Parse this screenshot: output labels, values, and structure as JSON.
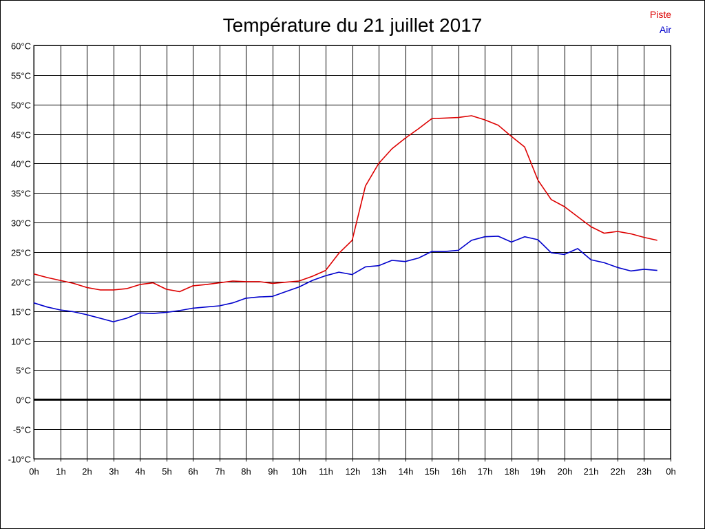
{
  "chart_data": {
    "type": "line",
    "title": "Température du 21 juillet 2017",
    "x_tick_labels": [
      "0h",
      "1h",
      "2h",
      "3h",
      "4h",
      "5h",
      "6h",
      "7h",
      "8h",
      "9h",
      "10h",
      "11h",
      "12h",
      "13h",
      "14h",
      "15h",
      "16h",
      "17h",
      "18h",
      "19h",
      "20h",
      "21h",
      "22h",
      "23h",
      "0h"
    ],
    "y_tick_labels": [
      "60°C",
      "55°C",
      "50°C",
      "45°C",
      "40°C",
      "35°C",
      "30°C",
      "25°C",
      "20°C",
      "15°C",
      "10°C",
      "5°C",
      "0°C",
      "-5°C",
      "-10°C"
    ],
    "xlim": [
      0,
      24
    ],
    "ylim": [
      -10,
      60
    ],
    "grid": true,
    "legend_position": "top-right",
    "reference_line": {
      "y": 0,
      "color": "#000000"
    },
    "x": [
      0,
      0.5,
      1,
      1.5,
      2,
      2.5,
      3,
      3.5,
      4,
      4.5,
      5,
      5.5,
      6,
      6.5,
      7,
      7.5,
      8,
      8.5,
      9,
      9.5,
      10,
      10.5,
      11,
      11.5,
      12,
      12.5,
      13,
      13.5,
      14,
      14.5,
      15,
      15.5,
      16,
      16.5,
      17,
      17.5,
      18,
      18.5,
      19,
      19.5,
      20,
      20.5,
      21,
      21.5,
      22,
      22.5,
      23,
      23.5
    ],
    "series": [
      {
        "name": "Piste",
        "color": "#dd0000",
        "values": [
          21.3,
          20.7,
          20.2,
          19.7,
          19.0,
          18.6,
          18.6,
          18.8,
          19.5,
          19.8,
          18.7,
          18.3,
          19.3,
          19.5,
          19.8,
          20.1,
          20.0,
          20.0,
          19.7,
          19.9,
          20.1,
          20.9,
          21.9,
          24.8,
          27.0,
          36.2,
          40.0,
          42.5,
          44.3,
          45.9,
          47.6,
          47.7,
          47.8,
          48.1,
          47.4,
          46.5,
          44.6,
          42.8,
          37.2,
          33.9,
          32.7,
          31.0,
          29.3,
          28.2,
          28.5,
          28.1,
          27.5,
          27.0
        ]
      },
      {
        "name": "Air",
        "color": "#0000cc",
        "values": [
          16.4,
          15.7,
          15.2,
          14.9,
          14.4,
          13.8,
          13.2,
          13.8,
          14.7,
          14.6,
          14.8,
          15.1,
          15.5,
          15.7,
          15.9,
          16.4,
          17.2,
          17.4,
          17.5,
          18.3,
          19.1,
          20.2,
          21.0,
          21.6,
          21.2,
          22.5,
          22.7,
          23.6,
          23.4,
          24.0,
          25.1,
          25.1,
          25.3,
          27.0,
          27.6,
          27.7,
          26.7,
          27.6,
          27.1,
          24.9,
          24.6,
          25.6,
          23.7,
          23.2,
          22.4,
          21.8,
          22.1,
          21.9
        ]
      }
    ]
  }
}
